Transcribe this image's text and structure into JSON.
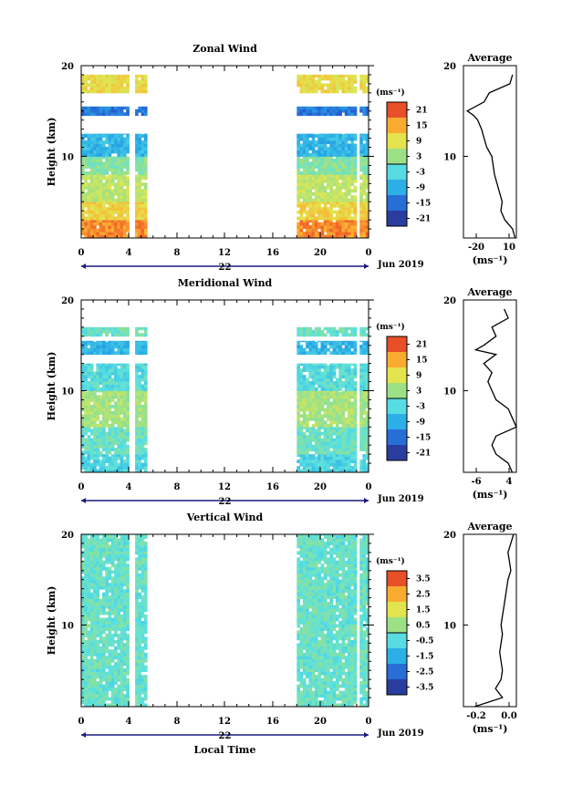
{
  "chart_data": [
    {
      "type": "heatmap",
      "title": "Zonal Wind",
      "ylabel": "Height (km)",
      "ylim": [
        1,
        20
      ],
      "yticks": [
        "10",
        "20"
      ],
      "x_ticks": [
        "0",
        "4",
        "8",
        "12",
        "16",
        "20",
        "0"
      ],
      "xlim": [
        0,
        24
      ],
      "date_day": "22",
      "date_month": "Jun 2019",
      "colorbar": {
        "unit": "(ms⁻¹)",
        "ticks": [
          "21",
          "15",
          "9",
          "3",
          "-3",
          "-9",
          "-15",
          "-21"
        ],
        "range": [
          -24,
          24
        ]
      },
      "data_gap_hours": [
        [
          4.1,
          4.5
        ],
        [
          5.5,
          17.9
        ],
        [
          22.9,
          23.2
        ]
      ],
      "layers": [
        {
          "height_km": [
            1,
            3
          ],
          "value": 17
        },
        {
          "height_km": [
            3,
            5
          ],
          "value": 11
        },
        {
          "height_km": [
            5,
            8
          ],
          "value": 6
        },
        {
          "height_km": [
            8,
            10
          ],
          "value": 1
        },
        {
          "height_km": [
            10,
            12.5
          ],
          "value": -8
        },
        {
          "height_km": [
            14.5,
            15.5
          ],
          "value": -14
        },
        {
          "height_km": [
            17,
            19
          ],
          "value": 10
        }
      ],
      "average": {
        "title": "Average",
        "xlabel": "(ms⁻¹)",
        "xticks": [
          "-20",
          "10"
        ],
        "xlim": [
          -28,
          13
        ],
        "height_km": [
          1,
          2,
          3,
          4,
          5,
          6,
          7,
          8,
          9,
          10,
          11,
          12,
          13,
          14,
          14.5,
          15,
          16,
          17,
          18,
          19
        ],
        "value": [
          12,
          10,
          4,
          1,
          2,
          0,
          -2,
          -4,
          -5,
          -6,
          -10,
          -12,
          -14,
          -17,
          -20,
          -25,
          -12,
          -8,
          8,
          10
        ]
      }
    },
    {
      "type": "heatmap",
      "title": "Meridional Wind",
      "ylabel": "Height (km)",
      "ylim": [
        1,
        20
      ],
      "yticks": [
        "10",
        "20"
      ],
      "x_ticks": [
        "0",
        "4",
        "8",
        "12",
        "16",
        "20",
        "0"
      ],
      "xlim": [
        0,
        24
      ],
      "date_day": "22",
      "date_month": "Jun 2019",
      "colorbar": {
        "unit": "(ms⁻¹)",
        "ticks": [
          "21",
          "15",
          "9",
          "3",
          "-3",
          "-9",
          "-15",
          "-21"
        ],
        "range": [
          -24,
          24
        ]
      },
      "data_gap_hours": [
        [
          4.1,
          4.5
        ],
        [
          5.5,
          17.9
        ],
        [
          22.9,
          23.2
        ]
      ],
      "layers": [
        {
          "height_km": [
            1,
            3
          ],
          "value": -4
        },
        {
          "height_km": [
            3,
            6
          ],
          "value": -1
        },
        {
          "height_km": [
            6,
            10
          ],
          "value": 4
        },
        {
          "height_km": [
            10,
            13
          ],
          "value": -3
        },
        {
          "height_km": [
            14,
            15.5
          ],
          "value": -8
        },
        {
          "height_km": [
            16,
            17
          ],
          "value": -1
        }
      ],
      "average": {
        "title": "Average",
        "xlabel": "(ms⁻¹)",
        "xticks": [
          "-6",
          "4"
        ],
        "xlim": [
          -8,
          5
        ],
        "height_km": [
          1,
          2,
          3,
          4,
          5,
          6,
          7,
          8,
          9,
          10,
          11,
          12,
          13,
          14,
          14.5,
          15,
          16,
          17,
          18,
          19
        ],
        "value": [
          4,
          3,
          0,
          -1,
          0,
          5,
          4,
          3,
          0,
          -1,
          -2,
          -1,
          -3,
          0,
          -5,
          -3,
          0,
          -1,
          3,
          2
        ]
      }
    },
    {
      "type": "heatmap",
      "title": "Vertical Wind",
      "ylabel": "Height (km)",
      "xlabel": "Local Time",
      "ylim": [
        1,
        20
      ],
      "yticks": [
        "10",
        "20"
      ],
      "x_ticks": [
        "0",
        "4",
        "8",
        "12",
        "16",
        "20",
        "0"
      ],
      "xlim": [
        0,
        24
      ],
      "date_day": "22",
      "date_month": "Jun 2019",
      "colorbar": {
        "unit": "(ms⁻¹)",
        "ticks": [
          "3.5",
          "2.5",
          "1.5",
          "0.5",
          "-0.5",
          "-1.5",
          "-2.5",
          "-3.5"
        ],
        "range": [
          -4,
          4
        ]
      },
      "data_gap_hours": [
        [
          4.1,
          4.5
        ],
        [
          5.5,
          17.9
        ],
        [
          22.9,
          23.2
        ]
      ],
      "layers": [
        {
          "height_km": [
            1,
            20
          ],
          "value": -0.2
        }
      ],
      "average": {
        "title": "Average",
        "xlabel": "(ms⁻¹)",
        "xticks": [
          "-0.2",
          "0.0"
        ],
        "xlim": [
          -0.28,
          0.1
        ],
        "height_km": [
          1,
          2,
          3,
          4,
          5,
          6,
          7,
          8,
          9,
          10,
          11,
          12,
          13,
          14,
          15,
          16,
          17,
          18,
          19,
          20
        ],
        "value": [
          -0.2,
          0.0,
          -0.05,
          -0.01,
          0.0,
          -0.01,
          -0.02,
          -0.01,
          0.0,
          -0.01,
          0.0,
          0.01,
          0.02,
          0.03,
          0.04,
          0.06,
          0.05,
          0.04,
          0.06,
          0.08
        ]
      }
    }
  ]
}
